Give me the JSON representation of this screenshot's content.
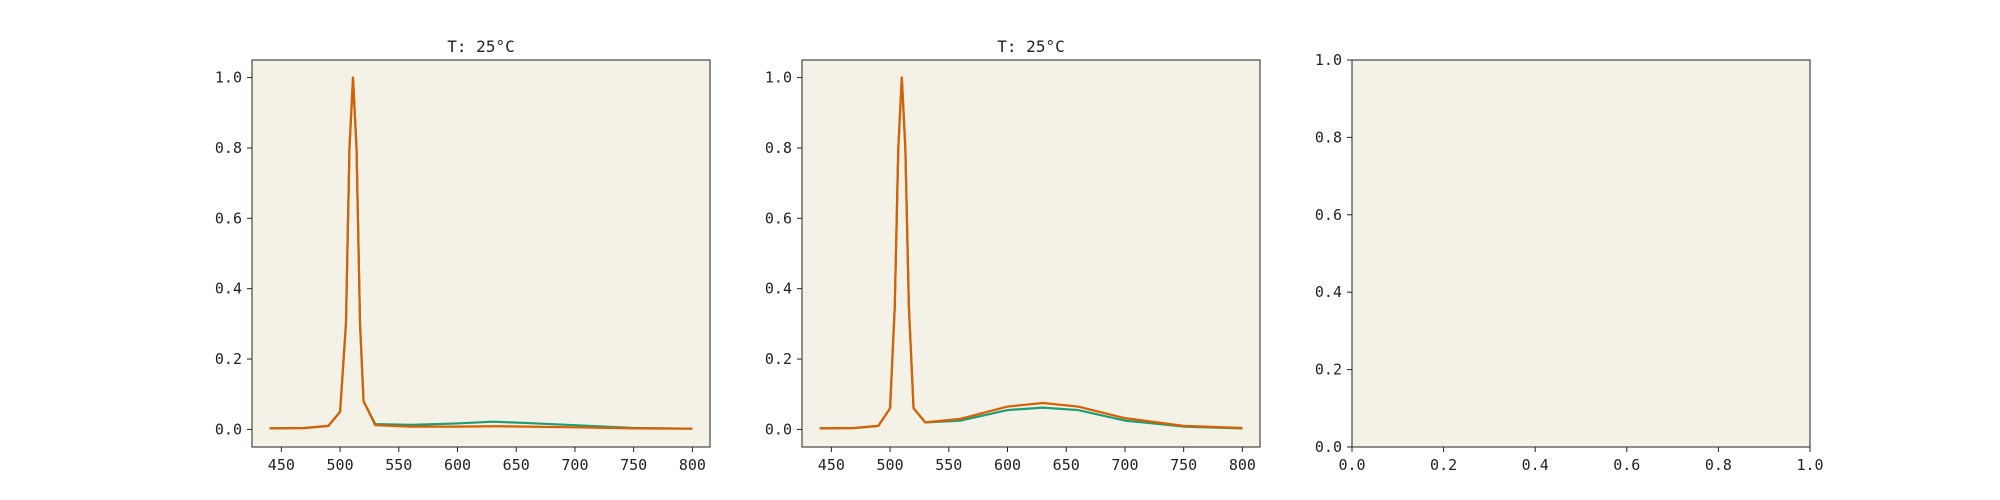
{
  "colors": {
    "figure_background": "#ffffff",
    "axes_background": "#f4f2e6",
    "axes_edge": "#222222",
    "series_1": "#1b9e77",
    "series_2": "#d95f02"
  },
  "chart_data": [
    {
      "type": "line",
      "title": "T: 25°C",
      "xlabel": "",
      "ylabel": "",
      "xlim": [
        425,
        815
      ],
      "ylim": [
        -0.05,
        1.05
      ],
      "xticks": [
        "450",
        "500",
        "550",
        "600",
        "650",
        "700",
        "750",
        "800"
      ],
      "yticks": [
        "0.0",
        "0.2",
        "0.4",
        "0.6",
        "0.8",
        "1.0"
      ],
      "grid": false,
      "legend": "none",
      "series": [
        {
          "color": "#1b9e77",
          "x": [
            440,
            470,
            490,
            500,
            505,
            508,
            511,
            514,
            517,
            520,
            530,
            560,
            600,
            630,
            660,
            700,
            750,
            800
          ],
          "y": [
            0.003,
            0.004,
            0.01,
            0.05,
            0.3,
            0.8,
            1.0,
            0.8,
            0.3,
            0.08,
            0.015,
            0.013,
            0.017,
            0.022,
            0.018,
            0.012,
            0.004,
            0.002
          ]
        },
        {
          "color": "#d95f02",
          "x": [
            440,
            470,
            490,
            500,
            505,
            508,
            511,
            514,
            517,
            520,
            530,
            560,
            600,
            630,
            660,
            700,
            750,
            800
          ],
          "y": [
            0.003,
            0.004,
            0.01,
            0.05,
            0.3,
            0.8,
            1.0,
            0.8,
            0.3,
            0.08,
            0.012,
            0.008,
            0.008,
            0.009,
            0.008,
            0.006,
            0.003,
            0.002
          ]
        }
      ]
    },
    {
      "type": "line",
      "title": "T: 25°C",
      "xlabel": "",
      "ylabel": "",
      "xlim": [
        425,
        815
      ],
      "ylim": [
        -0.05,
        1.05
      ],
      "xticks": [
        "450",
        "500",
        "550",
        "600",
        "650",
        "700",
        "750",
        "800"
      ],
      "yticks": [
        "0.0",
        "0.2",
        "0.4",
        "0.6",
        "0.8",
        "1.0"
      ],
      "grid": false,
      "legend": "none",
      "series": [
        {
          "color": "#1b9e77",
          "x": [
            440,
            470,
            490,
            500,
            504,
            507,
            510,
            513,
            516,
            520,
            530,
            560,
            600,
            630,
            660,
            700,
            750,
            800
          ],
          "y": [
            0.003,
            0.004,
            0.01,
            0.06,
            0.35,
            0.8,
            1.0,
            0.8,
            0.35,
            0.06,
            0.02,
            0.025,
            0.055,
            0.062,
            0.055,
            0.025,
            0.008,
            0.003
          ]
        },
        {
          "color": "#d95f02",
          "x": [
            440,
            470,
            490,
            500,
            504,
            507,
            510,
            513,
            516,
            520,
            530,
            560,
            600,
            630,
            660,
            700,
            750,
            800
          ],
          "y": [
            0.003,
            0.004,
            0.01,
            0.06,
            0.35,
            0.8,
            1.0,
            0.8,
            0.35,
            0.06,
            0.02,
            0.03,
            0.065,
            0.075,
            0.065,
            0.032,
            0.01,
            0.004
          ]
        }
      ]
    },
    {
      "type": "line",
      "title": "",
      "xlabel": "",
      "ylabel": "",
      "xlim": [
        0,
        1
      ],
      "ylim": [
        0,
        1
      ],
      "xticks": [
        "0.0",
        "0.2",
        "0.4",
        "0.6",
        "0.8",
        "1.0"
      ],
      "yticks": [
        "0.0",
        "0.2",
        "0.4",
        "0.6",
        "0.8",
        "1.0"
      ],
      "grid": false,
      "legend": "none",
      "series": []
    }
  ]
}
